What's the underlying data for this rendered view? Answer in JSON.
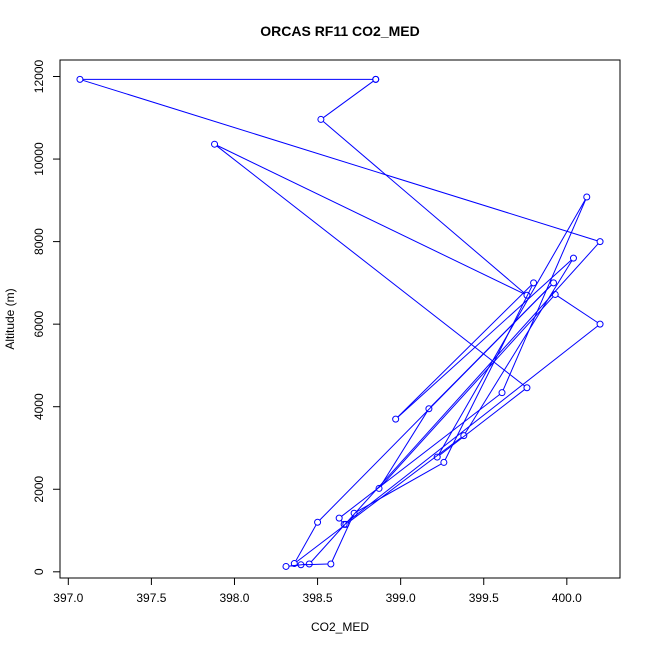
{
  "chart_data": {
    "type": "line",
    "title": "ORCAS RF11 CO2_MED",
    "xlabel": "CO2_MED",
    "ylabel": "Altitude (m)",
    "xlim": [
      396.95,
      400.32
    ],
    "ylim": [
      -150,
      12400
    ],
    "xticks": [
      "397.0",
      "397.5",
      "398.0",
      "398.5",
      "399.0",
      "399.5",
      "400.0"
    ],
    "yticks": [
      "0",
      "2000",
      "4000",
      "6000",
      "8000",
      "10000",
      "12000"
    ],
    "grid": false,
    "legend": "none",
    "series": [
      {
        "color": "#0000ff",
        "marker": "open-circle",
        "x": [
          398.85,
          397.07,
          400.2,
          398.45,
          398.31,
          398.4,
          398.58,
          398.72,
          399.26,
          399.8,
          398.97,
          400.04,
          399.38,
          398.67,
          398.36,
          398.5,
          399.92,
          399.17,
          398.87,
          399.93,
          400.2,
          398.66,
          398.63,
          399.61,
          400.12,
          399.22,
          399.76,
          397.88,
          399.76,
          398.52,
          398.85
        ],
        "y": [
          11930,
          11930,
          8000,
          190,
          130,
          170,
          190,
          1420,
          2650,
          7000,
          3700,
          7600,
          3300,
          1150,
          200,
          1200,
          7000,
          3950,
          2020,
          6720,
          6000,
          1150,
          1300,
          4340,
          9080,
          2780,
          4460,
          10360,
          6700,
          10960,
          11930
        ]
      }
    ]
  }
}
